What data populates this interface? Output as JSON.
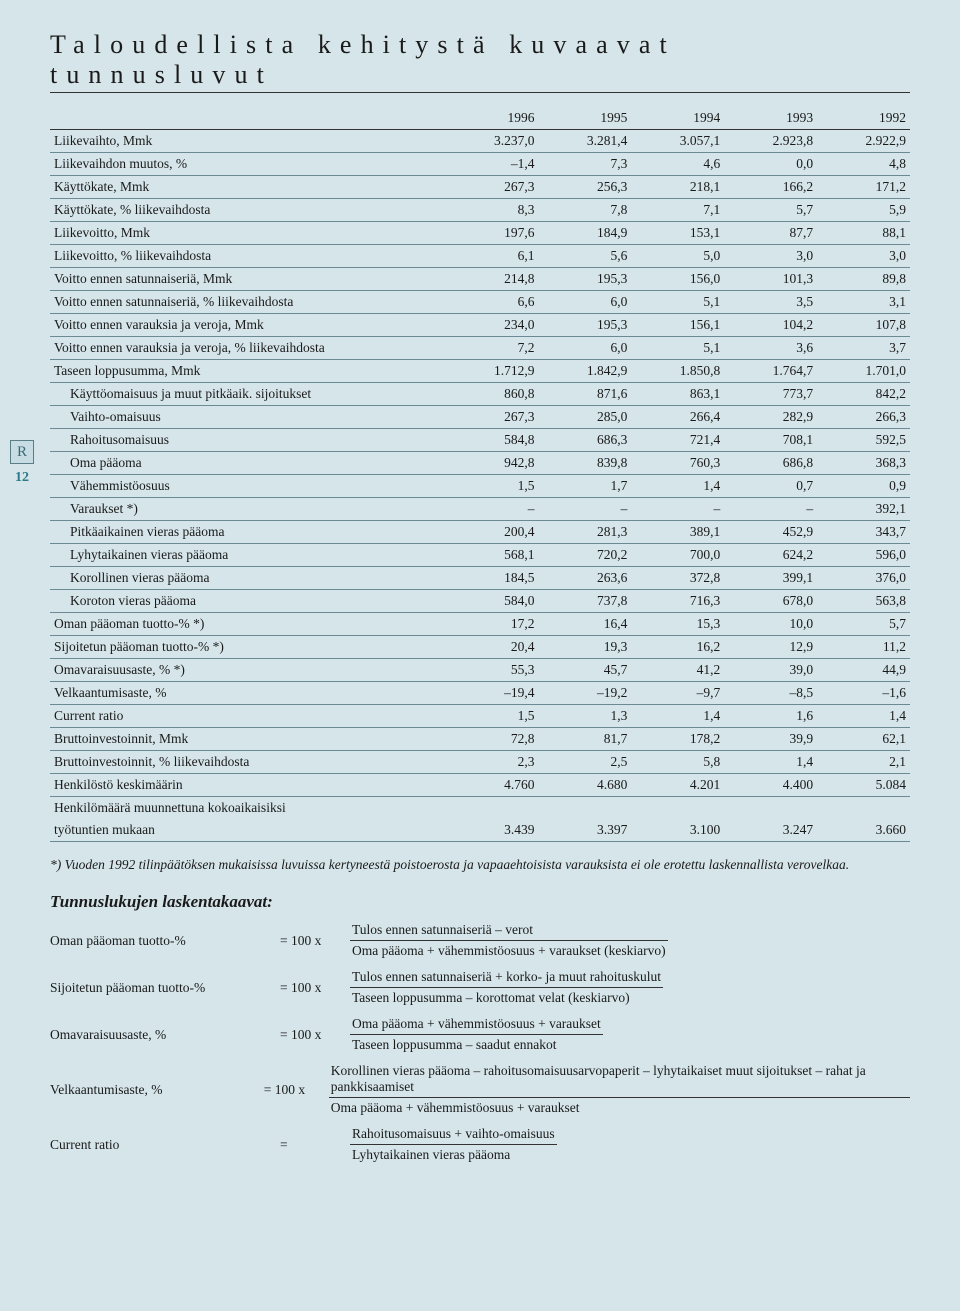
{
  "page_number": "12",
  "title": "Taloudellista kehitystä kuvaavat tunnusluvut",
  "table": {
    "years": [
      "1996",
      "1995",
      "1994",
      "1993",
      "1992"
    ],
    "rows": [
      {
        "label": "Liikevaihto, Mmk",
        "v": [
          "3.237,0",
          "3.281,4",
          "3.057,1",
          "2.923,8",
          "2.922,9"
        ],
        "indent": 0,
        "line": true
      },
      {
        "label": "Liikevaihdon muutos, %",
        "v": [
          "–1,4",
          "7,3",
          "4,6",
          "0,0",
          "4,8"
        ],
        "indent": 0,
        "line": true
      },
      {
        "label": "Käyttökate, Mmk",
        "v": [
          "267,3",
          "256,3",
          "218,1",
          "166,2",
          "171,2"
        ],
        "indent": 0,
        "line": true
      },
      {
        "label": "Käyttökate, % liikevaihdosta",
        "v": [
          "8,3",
          "7,8",
          "7,1",
          "5,7",
          "5,9"
        ],
        "indent": 0,
        "line": true
      },
      {
        "label": "Liikevoitto, Mmk",
        "v": [
          "197,6",
          "184,9",
          "153,1",
          "87,7",
          "88,1"
        ],
        "indent": 0,
        "line": true
      },
      {
        "label": "Liikevoitto, % liikevaihdosta",
        "v": [
          "6,1",
          "5,6",
          "5,0",
          "3,0",
          "3,0"
        ],
        "indent": 0,
        "line": true
      },
      {
        "label": "Voitto ennen satunnaiseriä, Mmk",
        "v": [
          "214,8",
          "195,3",
          "156,0",
          "101,3",
          "89,8"
        ],
        "indent": 0,
        "line": true
      },
      {
        "label": "Voitto ennen satunnaiseriä, % liikevaihdosta",
        "v": [
          "6,6",
          "6,0",
          "5,1",
          "3,5",
          "3,1"
        ],
        "indent": 0,
        "line": true
      },
      {
        "label": "Voitto ennen varauksia ja veroja, Mmk",
        "v": [
          "234,0",
          "195,3",
          "156,1",
          "104,2",
          "107,8"
        ],
        "indent": 0,
        "line": true
      },
      {
        "label": "Voitto ennen varauksia ja veroja, % liikevaihdosta",
        "v": [
          "7,2",
          "6,0",
          "5,1",
          "3,6",
          "3,7"
        ],
        "indent": 0,
        "line": true
      },
      {
        "label": "Taseen loppusumma, Mmk",
        "v": [
          "1.712,9",
          "1.842,9",
          "1.850,8",
          "1.764,7",
          "1.701,0"
        ],
        "indent": 0,
        "line": true
      },
      {
        "label": "Käyttöomaisuus ja muut pitkäaik. sijoitukset",
        "v": [
          "860,8",
          "871,6",
          "863,1",
          "773,7",
          "842,2"
        ],
        "indent": 1,
        "line": true
      },
      {
        "label": "Vaihto-omaisuus",
        "v": [
          "267,3",
          "285,0",
          "266,4",
          "282,9",
          "266,3"
        ],
        "indent": 1,
        "line": true
      },
      {
        "label": "Rahoitusomaisuus",
        "v": [
          "584,8",
          "686,3",
          "721,4",
          "708,1",
          "592,5"
        ],
        "indent": 1,
        "line": true
      },
      {
        "label": "Oma pääoma",
        "v": [
          "942,8",
          "839,8",
          "760,3",
          "686,8",
          "368,3"
        ],
        "indent": 1,
        "line": true
      },
      {
        "label": "Vähemmistöosuus",
        "v": [
          "1,5",
          "1,7",
          "1,4",
          "0,7",
          "0,9"
        ],
        "indent": 1,
        "line": true
      },
      {
        "label": "Varaukset *)",
        "v": [
          "–",
          "–",
          "–",
          "–",
          "392,1"
        ],
        "indent": 1,
        "line": true
      },
      {
        "label": "Pitkäaikainen vieras pääoma",
        "v": [
          "200,4",
          "281,3",
          "389,1",
          "452,9",
          "343,7"
        ],
        "indent": 1,
        "line": true
      },
      {
        "label": "Lyhytaikainen vieras pääoma",
        "v": [
          "568,1",
          "720,2",
          "700,0",
          "624,2",
          "596,0"
        ],
        "indent": 1,
        "line": true
      },
      {
        "label": "Korollinen vieras pääoma",
        "v": [
          "184,5",
          "263,6",
          "372,8",
          "399,1",
          "376,0"
        ],
        "indent": 1,
        "line": true
      },
      {
        "label": "Koroton vieras pääoma",
        "v": [
          "584,0",
          "737,8",
          "716,3",
          "678,0",
          "563,8"
        ],
        "indent": 1,
        "line": true
      },
      {
        "label": "Oman pääoman tuotto-% *)",
        "v": [
          "17,2",
          "16,4",
          "15,3",
          "10,0",
          "5,7"
        ],
        "indent": 0,
        "line": true
      },
      {
        "label": "Sijoitetun pääoman tuotto-% *)",
        "v": [
          "20,4",
          "19,3",
          "16,2",
          "12,9",
          "11,2"
        ],
        "indent": 0,
        "line": true
      },
      {
        "label": "Omavaraisuusaste, % *)",
        "v": [
          "55,3",
          "45,7",
          "41,2",
          "39,0",
          "44,9"
        ],
        "indent": 0,
        "line": true
      },
      {
        "label": "Velkaantumisaste, %",
        "v": [
          "–19,4",
          "–19,2",
          "–9,7",
          "–8,5",
          "–1,6"
        ],
        "indent": 0,
        "line": true
      },
      {
        "label": "Current ratio",
        "v": [
          "1,5",
          "1,3",
          "1,4",
          "1,6",
          "1,4"
        ],
        "indent": 0,
        "line": true
      },
      {
        "label": "Bruttoinvestoinnit, Mmk",
        "v": [
          "72,8",
          "81,7",
          "178,2",
          "39,9",
          "62,1"
        ],
        "indent": 0,
        "line": true
      },
      {
        "label": "Bruttoinvestoinnit, % liikevaihdosta",
        "v": [
          "2,3",
          "2,5",
          "5,8",
          "1,4",
          "2,1"
        ],
        "indent": 0,
        "line": true
      },
      {
        "label": "Henkilöstö keskimäärin",
        "v": [
          "4.760",
          "4.680",
          "4.201",
          "4.400",
          "5.084"
        ],
        "indent": 0,
        "line": true
      },
      {
        "label": "Henkilömäärä muunnettuna kokoaikaisiksi",
        "v": [
          "",
          "",
          "",
          "",
          ""
        ],
        "indent": 0,
        "line": false
      },
      {
        "label": "työtuntien mukaan",
        "v": [
          "3.439",
          "3.397",
          "3.100",
          "3.247",
          "3.660"
        ],
        "indent": 0,
        "line": true
      }
    ]
  },
  "footnote": "*) Vuoden 1992 tilinpäätöksen mukaisissa luvuissa kertyneestä poistoerosta ja vapaaehtoisista varauksista ei ole erotettu laskennallista verovelkaa.",
  "formulas_heading": "Tunnuslukujen laskentakaavat:",
  "formulas": [
    {
      "label": "Oman pääoman tuotto-%",
      "eq": "=  100 x",
      "num": "Tulos ennen satunnaiseriä – verot",
      "den": "Oma pääoma + vähemmistöosuus + varaukset (keskiarvo)"
    },
    {
      "label": "Sijoitetun pääoman tuotto-%",
      "eq": "=  100 x",
      "num": "Tulos ennen satunnaiseriä + korko- ja muut rahoituskulut",
      "den": "Taseen loppusumma – korottomat velat (keskiarvo)"
    },
    {
      "label": "Omavaraisuusaste, %",
      "eq": "=  100 x",
      "num": "Oma pääoma + vähemmistöosuus + varaukset",
      "den": "Taseen loppusumma – saadut ennakot"
    },
    {
      "label": "Velkaantumisaste, %",
      "eq": "=  100 x",
      "num": "Korollinen vieras pääoma – rahoitusomaisuusarvopaperit – lyhytaikaiset muut sijoitukset – rahat ja pankkisaamiset",
      "den": "Oma pääoma + vähemmistöosuus + varaukset"
    },
    {
      "label": "Current ratio",
      "eq": "=",
      "num": "Rahoitusomaisuus + vaihto-omaisuus",
      "den": "Lyhytaikainen vieras pääoma"
    }
  ],
  "colors": {
    "background": "#d5e5ea",
    "rule": "#6a8a94",
    "text": "#1a1a1a",
    "accent": "#2a7a8a"
  }
}
